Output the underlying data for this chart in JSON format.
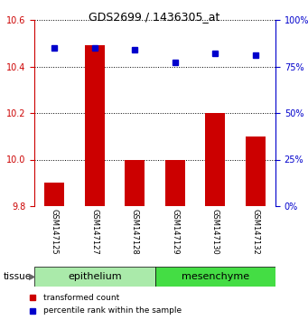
{
  "title": "GDS2699 / 1436305_at",
  "samples": [
    "GSM147125",
    "GSM147127",
    "GSM147128",
    "GSM147129",
    "GSM147130",
    "GSM147132"
  ],
  "red_values": [
    9.9,
    10.49,
    10.0,
    10.0,
    10.2,
    10.1
  ],
  "blue_values": [
    85,
    85,
    84,
    77,
    82,
    81
  ],
  "ylim_left": [
    9.8,
    10.6
  ],
  "ylim_right": [
    0,
    100
  ],
  "yticks_left": [
    9.8,
    10.0,
    10.2,
    10.4,
    10.6
  ],
  "yticks_right": [
    0,
    25,
    50,
    75,
    100
  ],
  "tissue_groups": [
    {
      "label": "epithelium",
      "count": 3,
      "color": "#AAEAAA"
    },
    {
      "label": "mesenchyme",
      "count": 3,
      "color": "#44DD44"
    }
  ],
  "tissue_label": "tissue",
  "bar_color": "#CC0000",
  "dot_color": "#0000CC",
  "legend_red": "transformed count",
  "legend_blue": "percentile rank within the sample",
  "bar_width": 0.5,
  "grid_color": "#000000",
  "axis_color_left": "#CC0000",
  "axis_color_right": "#0000CC",
  "sample_bg_color": "#C8C8C8",
  "plot_bg_color": "#FFFFFF",
  "fig_bg_color": "#FFFFFF",
  "base_value": 9.8,
  "title_fontsize": 9,
  "tick_fontsize": 7,
  "sample_fontsize": 6,
  "tissue_fontsize": 8,
  "legend_fontsize": 6.5
}
